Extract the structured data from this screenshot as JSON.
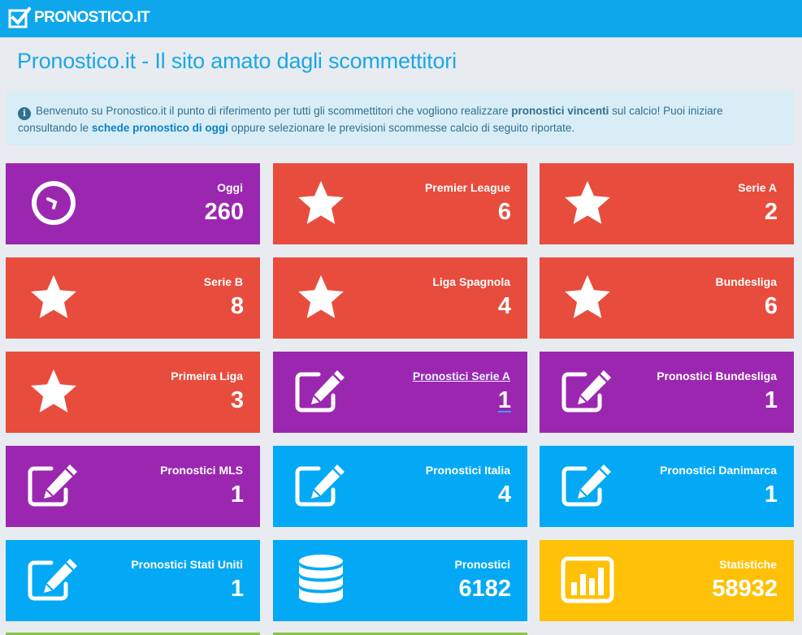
{
  "header": {
    "logo_text": "PRONOSTICO.IT"
  },
  "page": {
    "title": "Pronostico.it - Il sito amato dagli scommettitori"
  },
  "alert": {
    "text_1": "Benvenuto su Pronostico.it il punto di riferimento per tutti gli scommettitori che vogliono realizzare",
    "bold_1": "pronostici vincenti",
    "text_2": "sul calcio! Puoi iniziare consultando le",
    "link_1": "schede pronostico di oggi",
    "text_3": "oppure selezionare le previsioni scommesse calcio di seguito riportate."
  },
  "colors": {
    "header": "#0fa7ec",
    "purple": "#9b27b0",
    "red": "#e84c3d",
    "blue": "#03a9f4",
    "yellow": "#ffc107"
  },
  "tiles": [
    {
      "label": "Oggi",
      "count": "260",
      "icon": "clock-icon",
      "color": "purple"
    },
    {
      "label": "Premier League",
      "count": "6",
      "icon": "star-icon",
      "color": "red"
    },
    {
      "label": "Serie A",
      "count": "2",
      "icon": "star-icon",
      "color": "red"
    },
    {
      "label": "Serie B",
      "count": "8",
      "icon": "star-icon",
      "color": "red"
    },
    {
      "label": "Liga Spagnola",
      "count": "4",
      "icon": "star-icon",
      "color": "red"
    },
    {
      "label": "Bundesliga",
      "count": "6",
      "icon": "star-icon",
      "color": "red"
    },
    {
      "label": "Primeira Liga",
      "count": "3",
      "icon": "star-icon",
      "color": "red"
    },
    {
      "label": "Pronostici Serie A",
      "count": "1",
      "icon": "edit-icon",
      "color": "purple"
    },
    {
      "label": "Pronostici Bundesliga",
      "count": "1",
      "icon": "edit-icon",
      "color": "purple"
    },
    {
      "label": "Pronostici MLS",
      "count": "1",
      "icon": "edit-icon",
      "color": "purple"
    },
    {
      "label": "Pronostici Italia",
      "count": "4",
      "icon": "edit-icon",
      "color": "blue"
    },
    {
      "label": "Pronostici Danimarca",
      "count": "1",
      "icon": "edit-icon",
      "color": "blue"
    },
    {
      "label": "Pronostici Stati Uniti",
      "count": "1",
      "icon": "edit-icon",
      "color": "blue"
    },
    {
      "label": "Pronostici",
      "count": "6182",
      "icon": "database-icon",
      "color": "blue"
    },
    {
      "label": "Statistiche",
      "count": "58932",
      "icon": "bar-chart-icon",
      "color": "yellow"
    }
  ]
}
